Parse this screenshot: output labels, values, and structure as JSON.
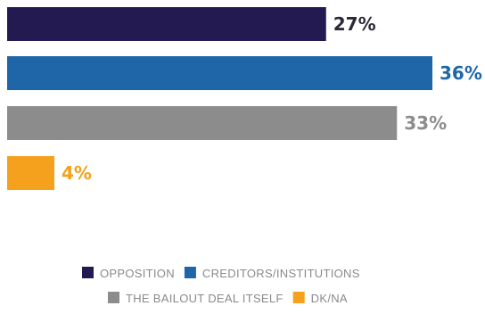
{
  "chart_data": {
    "type": "bar",
    "orientation": "horizontal",
    "categories": [
      "OPPOSITION",
      "CREDITORS/INSTITUTIONS",
      "THE BAILOUT DEAL ITSELF",
      "DK/NA"
    ],
    "values": [
      27,
      36,
      33,
      4
    ],
    "value_labels": [
      "27%",
      "36%",
      "33%",
      "4%"
    ],
    "colors": [
      "#231a52",
      "#1f66a8",
      "#8c8c8c",
      "#f5a11e"
    ],
    "value_label_colors": [
      "#2a2a3a",
      "#1f66a8",
      "#8c8c8c",
      "#f5a11e"
    ],
    "xlim": [
      0,
      36
    ],
    "grid": false,
    "legend": {
      "placement": "bottom",
      "entries": [
        {
          "label": "OPPOSITION",
          "color": "#231a52"
        },
        {
          "label": "CREDITORS/INSTITUTIONS",
          "color": "#1f66a8"
        },
        {
          "label": "THE BAILOUT DEAL ITSELF",
          "color": "#8c8c8c"
        },
        {
          "label": "DK/NA",
          "color": "#f5a11e"
        }
      ]
    }
  }
}
